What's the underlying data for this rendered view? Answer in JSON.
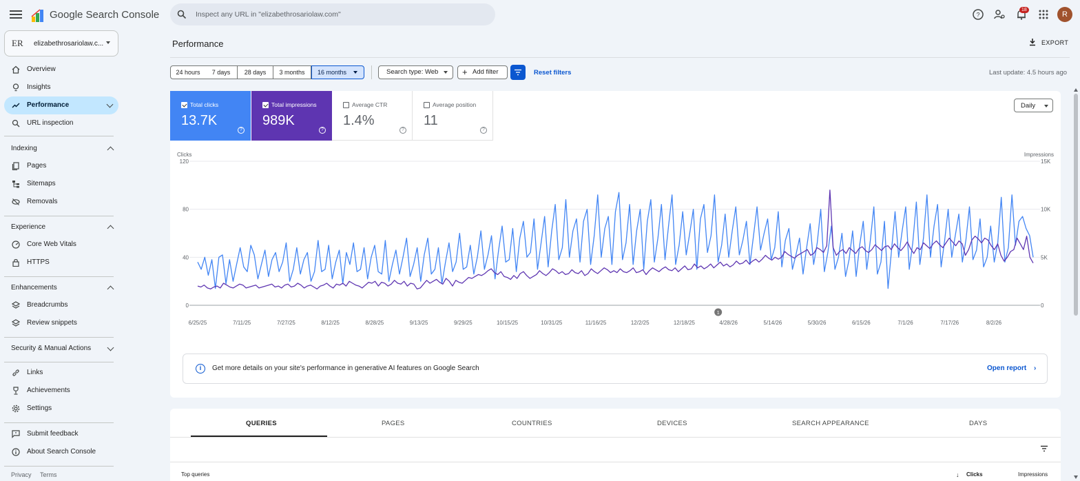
{
  "app": {
    "title": "Google Search Console"
  },
  "search": {
    "placeholder": "Inspect any URL in \"elizabethrosariolaw.com\""
  },
  "topbar": {
    "notifications_count": "18",
    "avatar_initial": "R"
  },
  "property": {
    "logo_text": "ER",
    "name": "elizabethrosariolaw.c..."
  },
  "sidebar": {
    "items": [
      {
        "label": "Overview",
        "icon": "home-icon"
      },
      {
        "label": "Insights",
        "icon": "lightbulb-icon"
      },
      {
        "label": "Performance",
        "icon": "trending-icon",
        "active": true
      },
      {
        "label": "URL inspection",
        "icon": "search-icon"
      }
    ],
    "indexing": {
      "title": "Indexing",
      "items": [
        {
          "label": "Pages",
          "icon": "pages-icon"
        },
        {
          "label": "Sitemaps",
          "icon": "sitemap-icon"
        },
        {
          "label": "Removals",
          "icon": "removals-icon"
        }
      ]
    },
    "experience": {
      "title": "Experience",
      "items": [
        {
          "label": "Core Web Vitals",
          "icon": "gauge-icon"
        },
        {
          "label": "HTTPS",
          "icon": "lock-icon"
        }
      ]
    },
    "enhancements": {
      "title": "Enhancements",
      "items": [
        {
          "label": "Breadcrumbs",
          "icon": "layers-icon"
        },
        {
          "label": "Review snippets",
          "icon": "layers-icon"
        }
      ]
    },
    "security": {
      "title": "Security & Manual Actions"
    },
    "bottom": [
      {
        "label": "Links",
        "icon": "link-icon"
      },
      {
        "label": "Achievements",
        "icon": "trophy-icon"
      },
      {
        "label": "Settings",
        "icon": "gear-icon"
      }
    ],
    "feedback": [
      {
        "label": "Submit feedback",
        "icon": "feedback-icon"
      },
      {
        "label": "About Search Console",
        "icon": "info-icon"
      }
    ],
    "footer": {
      "privacy": "Privacy",
      "terms": "Terms"
    }
  },
  "header": {
    "title": "Performance",
    "export_label": "EXPORT"
  },
  "filters": {
    "date_ranges": [
      "24 hours",
      "7 days",
      "28 days",
      "3 months",
      "16 months"
    ],
    "selected_range": "16 months",
    "search_type": "Search type: Web",
    "add_filter": "Add filter",
    "reset": "Reset filters",
    "last_update": "Last update: 4.5 hours ago"
  },
  "metrics": {
    "clicks": {
      "label": "Total clicks",
      "value": "13.7K",
      "checked": true
    },
    "impressions": {
      "label": "Total impressions",
      "value": "989K",
      "checked": true
    },
    "ctr": {
      "label": "Average CTR",
      "value": "1.4%",
      "checked": false
    },
    "position": {
      "label": "Average position",
      "value": "11",
      "checked": false
    }
  },
  "granularity": "Daily",
  "chart_data": {
    "type": "line",
    "left_axis": {
      "label": "Clicks",
      "ticks": [
        "0",
        "40",
        "80",
        "120"
      ],
      "ylim": [
        0,
        120
      ]
    },
    "right_axis": {
      "label": "Impressions",
      "ticks": [
        "0",
        "5K",
        "10K",
        "15K"
      ],
      "ylim": [
        0,
        15000
      ]
    },
    "x_ticks": [
      "6/25/25",
      "7/11/25",
      "7/27/25",
      "8/12/25",
      "8/28/25",
      "9/13/25",
      "9/29/25",
      "10/15/25",
      "10/31/25",
      "11/16/25",
      "12/2/25",
      "12/18/25",
      "4/28/26",
      "5/14/26",
      "5/30/26",
      "6/15/26",
      "7/1/26",
      "7/17/26",
      "8/2/26"
    ],
    "annotation": "1",
    "series": [
      {
        "name": "Clicks",
        "color": "#4285f4",
        "axis": "left",
        "values": [
          36,
          30,
          40,
          25,
          38,
          14,
          40,
          42,
          18,
          38,
          20,
          34,
          48,
          32,
          28,
          50,
          42,
          22,
          34,
          46,
          24,
          38,
          44,
          28,
          36,
          52,
          20,
          30,
          48,
          26,
          38,
          44,
          20,
          28,
          54,
          28,
          30,
          50,
          22,
          36,
          46,
          18,
          44,
          34,
          52,
          28,
          30,
          48,
          22,
          40,
          50,
          28,
          26,
          54,
          20,
          34,
          46,
          26,
          40,
          56,
          24,
          34,
          48,
          20,
          42,
          56,
          26,
          30,
          48,
          18,
          36,
          52,
          28,
          36,
          60,
          30,
          32,
          50,
          26,
          40,
          62,
          30,
          42,
          58,
          22,
          46,
          66,
          36,
          38,
          64,
          28,
          56,
          70,
          40,
          44,
          72,
          30,
          52,
          74,
          32,
          62,
          84,
          38,
          48,
          88,
          40,
          62,
          72,
          36,
          70,
          80,
          34,
          58,
          92,
          40,
          64,
          74,
          34,
          78,
          94,
          38,
          52,
          84,
          34,
          62,
          80,
          30,
          70,
          88,
          36,
          56,
          84,
          38,
          66,
          92,
          34,
          50,
          78,
          42,
          60,
          80,
          30,
          72,
          84,
          44,
          58,
          92,
          36,
          50,
          76,
          40,
          62,
          82,
          42,
          54,
          70,
          34,
          58,
          82,
          46,
          60,
          72,
          38,
          48,
          78,
          32,
          54,
          64,
          30,
          42,
          56,
          26,
          48,
          68,
          34,
          52,
          80,
          28,
          44,
          66,
          30,
          40,
          60,
          24,
          38,
          62,
          24,
          50,
          70,
          30,
          54,
          82,
          26,
          36,
          70,
          14,
          46,
          78,
          40,
          62,
          82,
          30,
          52,
          86,
          34,
          56,
          92,
          40,
          66,
          84,
          32,
          54,
          80,
          40,
          58,
          76,
          36,
          54,
          82,
          38,
          46,
          72,
          32,
          40,
          66,
          36,
          52,
          90,
          36,
          48,
          92,
          50,
          70,
          74,
          64,
          58,
          40
        ]
      },
      {
        "name": "Impressions",
        "color": "#5e35b1",
        "axis": "right",
        "values": [
          2000,
          1900,
          2100,
          1800,
          1700,
          1900,
          2000,
          1800,
          2300,
          2100,
          1900,
          1800,
          2000,
          2200,
          2100,
          1800,
          1900,
          2000,
          2100,
          1800,
          1900,
          2000,
          2100,
          2200,
          1900,
          2000,
          1800,
          2100,
          2200,
          1900,
          2000,
          2300,
          2100,
          1800,
          2000,
          2100,
          1900,
          1700,
          2000,
          2100,
          2300,
          2000,
          1800,
          2200,
          2100,
          2300,
          2000,
          2500,
          2300,
          2100,
          2000,
          1800,
          2100,
          2400,
          2300,
          2500,
          2000,
          2400,
          2300,
          2000,
          2200,
          2600,
          2300,
          2200,
          2500,
          2000,
          2300,
          2200,
          1700,
          1800,
          2200,
          2600,
          2300,
          2500,
          2700,
          2400,
          2200,
          2800,
          2500,
          2000,
          2600,
          2400,
          2300,
          2600,
          2900,
          2800,
          3000,
          3200,
          3100,
          3300,
          3600,
          3800,
          3400,
          3200,
          3500,
          3000,
          2900,
          2700,
          3100,
          2800,
          3300,
          3500,
          3100,
          2800,
          3000,
          3200,
          3600,
          3300,
          3100,
          3400,
          3800,
          3600,
          3300,
          3500,
          3200,
          3300,
          3700,
          3400,
          3300,
          3600,
          3100,
          3300,
          3800,
          3500,
          3300,
          3600,
          3900,
          3700,
          3400,
          3600,
          3400,
          3800,
          3500,
          3400,
          3600,
          3900,
          3400,
          3500,
          3700,
          3200,
          3600,
          3900,
          3700,
          3500,
          3800,
          4000,
          3700,
          3600,
          3900,
          3500,
          3800,
          4100,
          3700,
          3800,
          4300,
          3900,
          4100,
          3800,
          4000,
          4300,
          3900,
          4200,
          4500,
          4100,
          4300,
          4000,
          4200,
          4600,
          4300,
          4400,
          4700,
          4300,
          4600,
          4800,
          4500,
          4800,
          5200,
          4900,
          4700,
          5000,
          4800,
          5000,
          5600,
          5300,
          5100,
          4900,
          5200,
          5400,
          5600,
          5800,
          5200,
          5400,
          6000,
          5800,
          5500,
          6200,
          12000,
          6000,
          5200,
          5600,
          5800,
          5400,
          6000,
          5700,
          5400,
          5900,
          6100,
          5700,
          5500,
          5800,
          6300,
          6000,
          5700,
          6100,
          6200,
          5800,
          6400,
          6000,
          5700,
          6100,
          6600,
          5900,
          5400,
          6000,
          5800,
          6500,
          6200,
          5900,
          6400,
          6700,
          6300,
          6000,
          6500,
          7000,
          6600,
          6200,
          6700,
          6400,
          5200,
          5800,
          6800,
          7200,
          6900,
          6500,
          7000,
          6800,
          6200,
          5800,
          6400,
          5200,
          4600,
          5000,
          5600,
          5800,
          7000,
          6400,
          5800,
          7200,
          5000,
          4400
        ]
      }
    ]
  },
  "ai_banner": {
    "text": "Get more details on your site's performance in generative AI features on Google Search",
    "link": "Open report"
  },
  "tabs": [
    "QUERIES",
    "PAGES",
    "COUNTRIES",
    "DEVICES",
    "SEARCH APPEARANCE",
    "DAYS"
  ],
  "table": {
    "col0": "Top queries",
    "col1": "Clicks",
    "col2": "Impressions"
  }
}
